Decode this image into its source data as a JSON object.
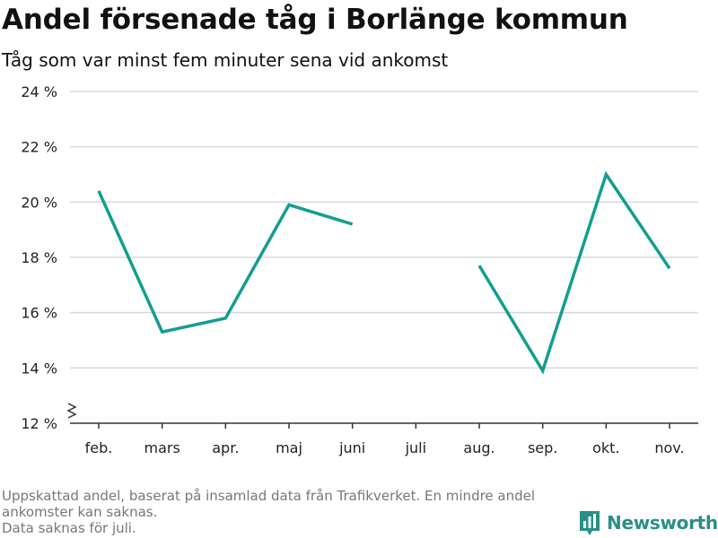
{
  "title": "Andel försenade tåg i Borlänge kommun",
  "subtitle": "Tåg som var minst fem minuter sena vid ankomst",
  "footnote": {
    "line1": "Uppskattad andel, baserat på insamlad data från Trafikverket. En mindre andel",
    "line2": "ankomster kan saknas.",
    "line3": "Data saknas för juli."
  },
  "brand": {
    "name": "Newsworthy",
    "icon": "bar-chart-logo-icon",
    "color": "#2a8f86"
  },
  "chart_data": {
    "type": "line",
    "title": "Andel försenade tåg i Borlänge kommun",
    "subtitle": "Tåg som var minst fem minuter sena vid ankomst",
    "categories": [
      "feb.",
      "mars",
      "apr.",
      "maj",
      "juni",
      "juli",
      "aug.",
      "sep.",
      "okt.",
      "nov."
    ],
    "series": [
      {
        "values": [
          20.4,
          15.3,
          15.8,
          19.9,
          19.2,
          null,
          17.7,
          13.9,
          21.0,
          17.6
        ],
        "color": "#129e92"
      }
    ],
    "ylim": [
      12,
      24
    ],
    "yticks": [
      12,
      14,
      16,
      18,
      20,
      22,
      24
    ],
    "ytick_labels": [
      "12 %",
      "14 %",
      "16 %",
      "18 %",
      "20 %",
      "22 %",
      "24 %"
    ],
    "y_axis_break": true,
    "grid": true,
    "legend": "none"
  }
}
